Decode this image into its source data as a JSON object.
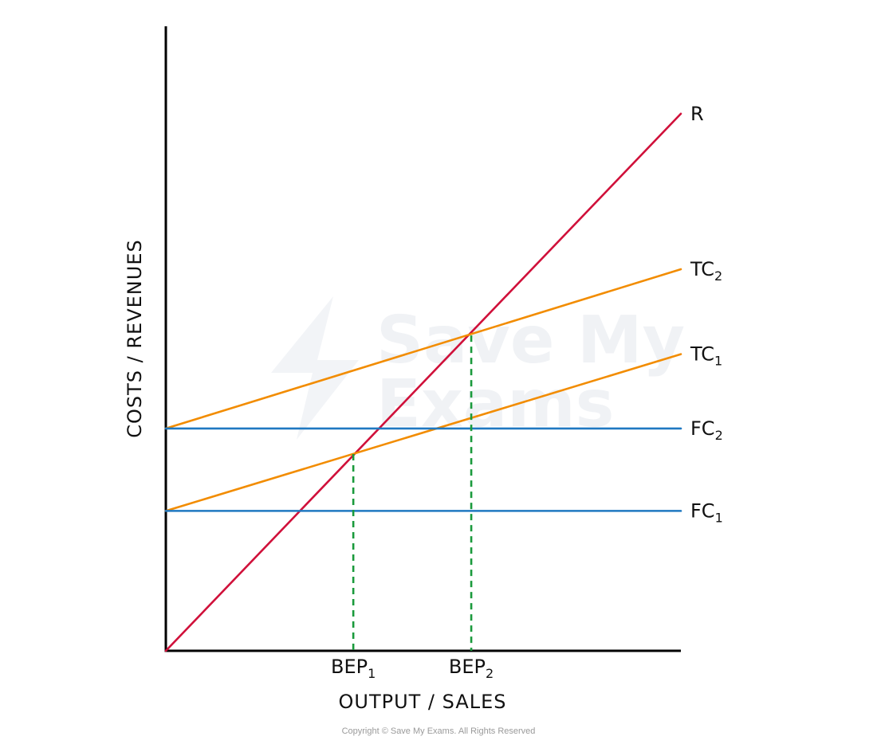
{
  "chart_data": {
    "type": "line",
    "title": "",
    "xlabel": "OUTPUT / SALES",
    "ylabel": "COSTS / REVENUES",
    "xlim": [
      0,
      100
    ],
    "ylim": [
      0,
      100
    ],
    "grid": false,
    "legend": "none",
    "series": [
      {
        "label": "R",
        "sub": "",
        "x": [
          0,
          100
        ],
        "y": [
          0,
          86
        ],
        "color": "#d0103a"
      },
      {
        "label": "TC",
        "sub": "2",
        "x": [
          0,
          100
        ],
        "y": [
          35.6,
          61.1
        ],
        "color": "#f28c00"
      },
      {
        "label": "TC",
        "sub": "1",
        "x": [
          0,
          100
        ],
        "y": [
          22.4,
          47.5
        ],
        "color": "#f28c00"
      },
      {
        "label": "FC",
        "sub": "2",
        "x": [
          0,
          100
        ],
        "y": [
          35.6,
          35.6
        ],
        "color": "#1f78c1"
      },
      {
        "label": "FC",
        "sub": "1",
        "x": [
          0,
          100
        ],
        "y": [
          22.4,
          22.4
        ],
        "color": "#1f78c1"
      }
    ],
    "break_even_points": [
      {
        "label": "BEP",
        "sub": "1",
        "x": 36.4,
        "y": 31.5,
        "color": "#1a9a3c"
      },
      {
        "label": "BEP",
        "sub": "2",
        "x": 59.3,
        "y": 50.5,
        "color": "#1a9a3c"
      }
    ]
  },
  "watermark": {
    "line1": "Save My",
    "line2": "Exams"
  },
  "copyright": "Copyright © Save My Exams. All Rights Reserved"
}
